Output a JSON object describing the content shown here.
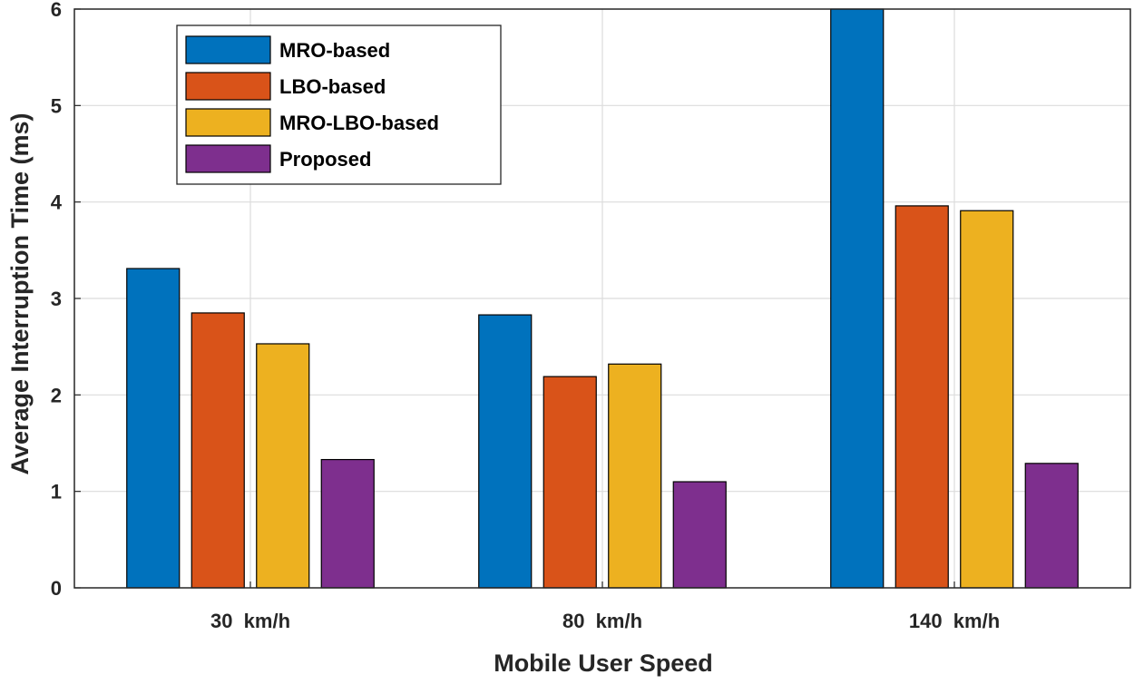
{
  "chart_data": {
    "type": "bar",
    "title": "",
    "xlabel": "Mobile User Speed",
    "ylabel": "Average Interruption Time (ms)",
    "ylim": [
      0,
      6
    ],
    "yticks": [
      0,
      1,
      2,
      3,
      4,
      5,
      6
    ],
    "grid": true,
    "legend_position": "top-left",
    "categories": [
      "30  km/h",
      "80  km/h",
      "140  km/h"
    ],
    "series": [
      {
        "name": "MRO-based",
        "color": "#0072BD",
        "values": [
          3.31,
          2.83,
          6.0
        ]
      },
      {
        "name": "LBO-based",
        "color": "#D95319",
        "values": [
          2.85,
          2.19,
          3.96
        ]
      },
      {
        "name": "MRO-LBO-based",
        "color": "#EDB120",
        "values": [
          2.53,
          2.32,
          3.91
        ]
      },
      {
        "name": "Proposed",
        "color": "#7E2F8E",
        "values": [
          1.33,
          1.1,
          1.29
        ]
      }
    ]
  }
}
